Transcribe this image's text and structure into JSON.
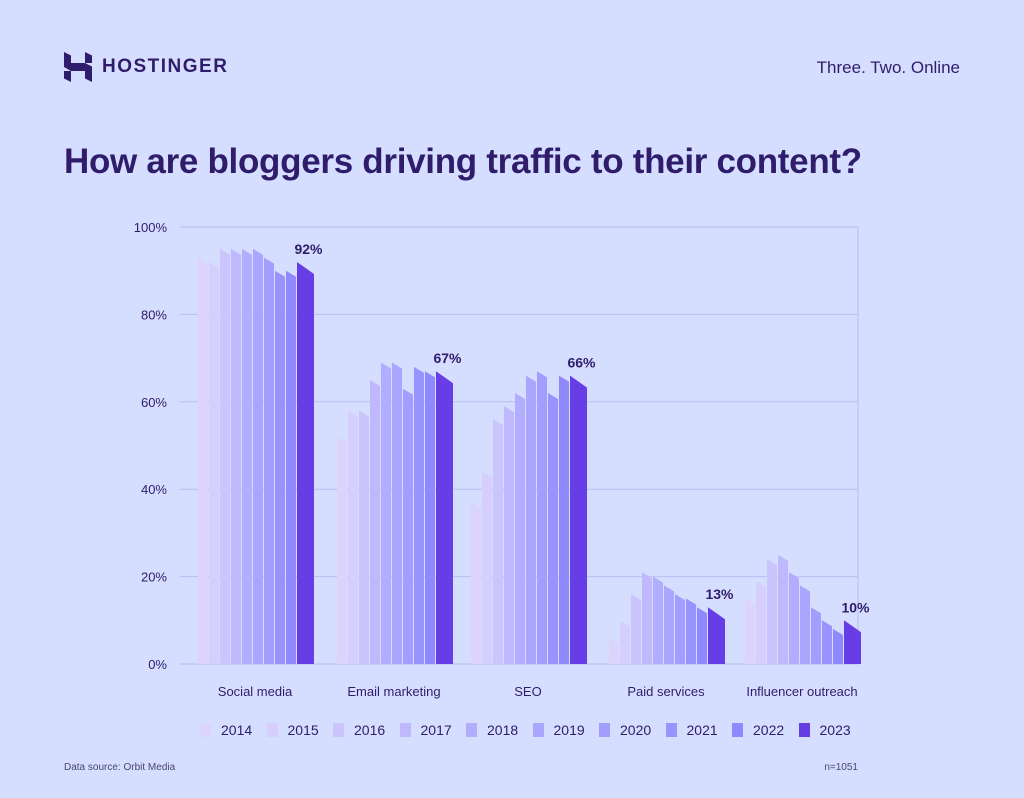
{
  "header": {
    "brand": "HOSTINGER",
    "tagline": "Three. Two. Online",
    "title": "How are bloggers driving traffic to their content?"
  },
  "footer": {
    "source": "Data source: Orbit Media",
    "sample": "n=1051"
  },
  "chart_data": {
    "type": "bar",
    "categories": [
      "Social media",
      "Email marketing",
      "SEO",
      "Paid services",
      "Influencer outreach"
    ],
    "ylim": [
      0,
      100
    ],
    "yticks": [
      "0%",
      "20%",
      "40%",
      "60%",
      "80%",
      "100%"
    ],
    "grid": true,
    "legend_placement": "bottom",
    "series": [
      {
        "name": "2014",
        "color": "#ddd4fe",
        "values": [
          93,
          52,
          37,
          6,
          15
        ]
      },
      {
        "name": "2015",
        "color": "#d6cefd",
        "values": [
          92,
          58,
          44,
          10,
          19
        ]
      },
      {
        "name": "2016",
        "color": "#cbc4fd",
        "values": [
          95,
          58,
          56,
          16,
          24
        ]
      },
      {
        "name": "2017",
        "color": "#bfb8fd",
        "values": [
          95,
          65,
          59,
          21,
          25
        ]
      },
      {
        "name": "2018",
        "color": "#b3adfd",
        "values": [
          95,
          69,
          62,
          20,
          21
        ]
      },
      {
        "name": "2019",
        "color": "#aba6fd",
        "values": [
          95,
          69,
          66,
          18,
          18
        ]
      },
      {
        "name": "2020",
        "color": "#a39efd",
        "values": [
          93,
          63,
          67,
          16,
          13
        ]
      },
      {
        "name": "2021",
        "color": "#9994fd",
        "values": [
          90,
          68,
          62,
          15,
          10
        ]
      },
      {
        "name": "2022",
        "color": "#8f89fd",
        "values": [
          90,
          67,
          66,
          13,
          8
        ]
      },
      {
        "name": "2023",
        "color": "#673de6",
        "values": [
          92,
          67,
          66,
          13,
          10
        ]
      }
    ],
    "data_labels": [
      "92%",
      "67%",
      "66%",
      "13%",
      "10%"
    ]
  }
}
